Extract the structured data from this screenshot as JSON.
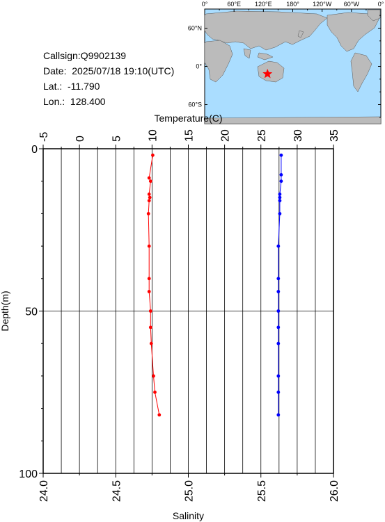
{
  "station": {
    "callsign": "Callsign:Q9902139",
    "date": "Date:  2025/07/18 19:10(UTC)",
    "lat": "Lat.:  -11.790",
    "lon": "Lon.:  128.400"
  },
  "map": {
    "lon_labels": [
      "0°",
      "60°E",
      "120°E",
      "180°",
      "120°W",
      "60°W",
      "0°"
    ],
    "lat_labels": [
      "60°N",
      "0°",
      "60°S"
    ],
    "marker": {
      "lon": 128.4,
      "lat": -11.79
    },
    "ocean_color": "#aaddff",
    "land_color": "#bbbbbb",
    "marker_color": "#ff0000"
  },
  "chart_data": {
    "type": "line",
    "top_axis": {
      "label": "Temperature(C)",
      "range": [
        -5,
        35
      ],
      "ticks": [
        -5,
        0,
        5,
        10,
        15,
        20,
        25,
        30,
        35
      ]
    },
    "bottom_axis": {
      "label": "Salinity",
      "range": [
        24.0,
        26.0
      ],
      "ticks": [
        "24.0",
        "24.5",
        "25.0",
        "25.5",
        "26.0"
      ]
    },
    "y_axis": {
      "label": "Depth(m)",
      "range": [
        0,
        100
      ],
      "inverted": true,
      "ticks": [
        0,
        50,
        100
      ]
    },
    "series": [
      {
        "axis": "temperature",
        "color": "#ff0000",
        "depth": [
          2,
          9,
          10,
          14,
          15,
          16,
          20,
          30,
          40,
          44,
          50,
          55,
          60,
          70,
          75,
          82
        ],
        "values": [
          10.1,
          9.6,
          9.8,
          9.6,
          9.7,
          9.6,
          9.5,
          9.6,
          9.6,
          9.6,
          9.8,
          9.8,
          9.9,
          10.2,
          10.4,
          11.0
        ]
      },
      {
        "axis": "salinity",
        "color": "#0000ff",
        "depth": [
          2,
          8,
          10,
          14,
          15,
          16,
          20,
          30,
          40,
          44,
          50,
          55,
          60,
          70,
          75,
          82
        ],
        "values": [
          25.64,
          25.64,
          25.64,
          25.63,
          25.63,
          25.63,
          25.63,
          25.62,
          25.62,
          25.62,
          25.62,
          25.62,
          25.62,
          25.62,
          25.62,
          25.62
        ]
      }
    ]
  }
}
